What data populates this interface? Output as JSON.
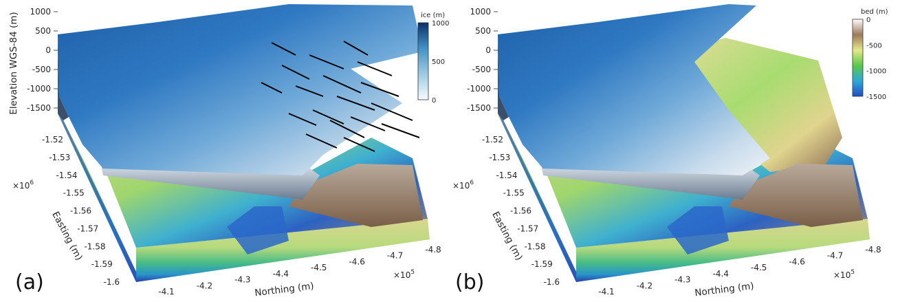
{
  "chart_data": [
    {
      "type": "surface",
      "panel_label": "(a)",
      "zlabel": "Elevation WGS-84 (m)",
      "xlabel": "Northing (m)",
      "ylabel": "Easting (m)",
      "zticks": [
        1000,
        500,
        0,
        -500,
        -1000,
        -1500
      ],
      "zlim": [
        -1500,
        1000
      ],
      "xticks": [
        -4.1,
        -4.2,
        -4.3,
        -4.4,
        -4.5,
        -4.6,
        -4.7,
        -4.8
      ],
      "xtick_labels": [
        "-4.1",
        "-4.2",
        "-4.3",
        "-4.4",
        "-4.5",
        "-4.6",
        "-4.7",
        "-4.8"
      ],
      "x_multiplier": "×10",
      "x_exponent": "5",
      "yticks": [
        -1.52,
        -1.53,
        -1.54,
        -1.55,
        -1.56,
        -1.57,
        -1.58,
        -1.59,
        -1.6
      ],
      "ytick_labels": [
        "-1.52",
        "-1.53",
        "-1.54",
        "-1.55",
        "-1.56",
        "-1.57",
        "-1.58",
        "-1.59",
        "-1.6"
      ],
      "y_multiplier": "×10",
      "y_exponent": "6",
      "colorbar": {
        "title": "ice (m)",
        "ticks": [
          "1000",
          "500",
          "0"
        ],
        "range": [
          0,
          1000
        ],
        "colors": [
          "#f7fbff",
          "#9ecae1",
          "#4292c6",
          "#08306b"
        ]
      },
      "overlay": "ice velocity vectors"
    },
    {
      "type": "surface",
      "panel_label": "(b)",
      "xlabel": "Northing (m)",
      "ylabel": "Easting (m)",
      "zticks": [
        1000,
        500,
        0,
        -500,
        -1000,
        -1500
      ],
      "zlim": [
        -1500,
        1000
      ],
      "xticks": [
        -4.1,
        -4.2,
        -4.3,
        -4.4,
        -4.5,
        -4.6,
        -4.7,
        -4.8
      ],
      "xtick_labels": [
        "-4.1",
        "-4.2",
        "-4.3",
        "-4.4",
        "-4.5",
        "-4.6",
        "-4.7",
        "-4.8"
      ],
      "x_multiplier": "×10",
      "x_exponent": "5",
      "yticks": [
        -1.52,
        -1.53,
        -1.54,
        -1.55,
        -1.56,
        -1.57,
        -1.58,
        -1.59,
        -1.6
      ],
      "ytick_labels": [
        "-1.52",
        "-1.53",
        "-1.54",
        "-1.55",
        "-1.56",
        "-1.57",
        "-1.58",
        "-1.59",
        "-1.6"
      ],
      "y_multiplier": "×10",
      "y_exponent": "6",
      "colorbar": {
        "title": "bed (m)",
        "ticks": [
          "0",
          "-500",
          "-1000",
          "-1500"
        ],
        "range": [
          -1500,
          0
        ],
        "colors": [
          "#1f4fbf",
          "#2fa7d8",
          "#59c84a",
          "#e7e78a",
          "#9c7a5c",
          "#ffffff"
        ]
      }
    }
  ]
}
